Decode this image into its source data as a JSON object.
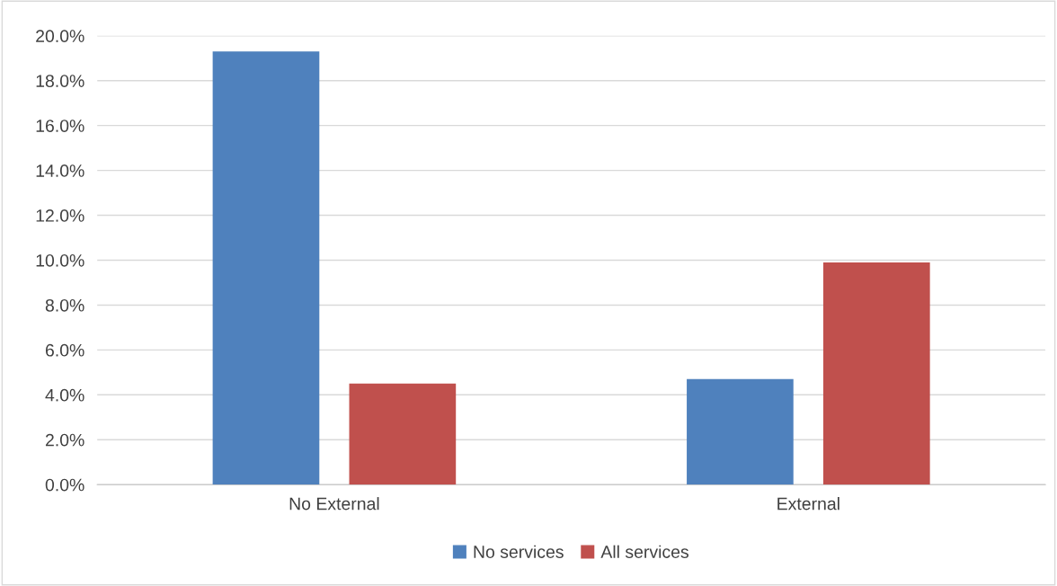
{
  "chart_data": {
    "type": "bar",
    "categories": [
      "No External",
      "External"
    ],
    "series": [
      {
        "name": "No services",
        "color": "#4f81bd",
        "values": [
          19.3,
          4.7
        ]
      },
      {
        "name": "All services",
        "color": "#c0504d",
        "values": [
          4.5,
          9.9
        ]
      }
    ],
    "ylim": [
      0,
      20
    ],
    "yticks": [
      {
        "value": 0,
        "label": "0.0%"
      },
      {
        "value": 2,
        "label": "2.0%"
      },
      {
        "value": 4,
        "label": "4.0%"
      },
      {
        "value": 6,
        "label": "6.0%"
      },
      {
        "value": 8,
        "label": "8.0%"
      },
      {
        "value": 10,
        "label": "10.0%"
      },
      {
        "value": 12,
        "label": "12.0%"
      },
      {
        "value": 14,
        "label": "14.0%"
      },
      {
        "value": 16,
        "label": "16.0%"
      },
      {
        "value": 18,
        "label": "18.0%"
      },
      {
        "value": 20,
        "label": "20.0%"
      }
    ],
    "grid": "y",
    "legend": "bottom"
  }
}
